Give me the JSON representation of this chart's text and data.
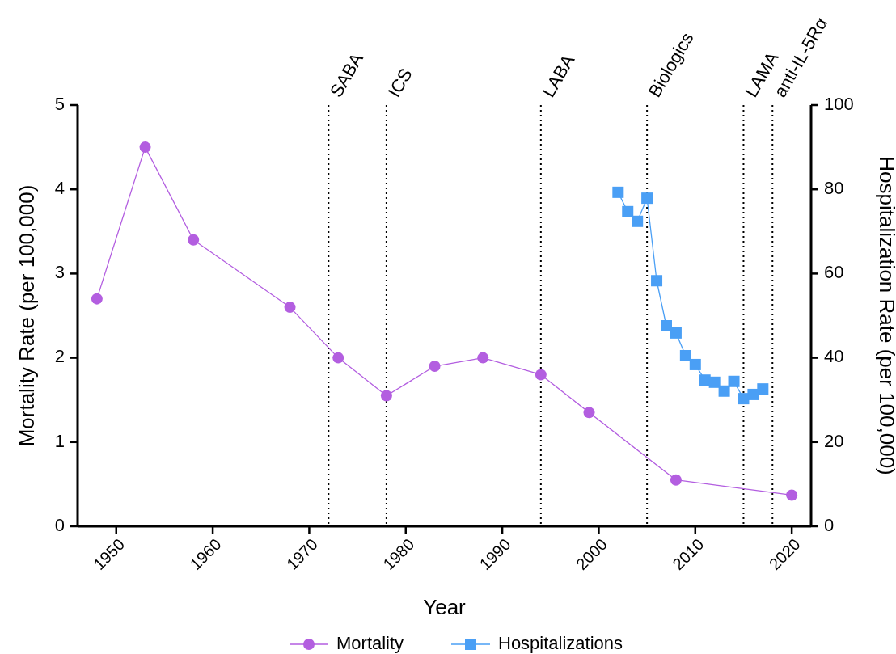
{
  "chart_data": {
    "type": "line",
    "xlabel": "Year",
    "ylabel": "Mortality Rate (per 100,000)",
    "y2label": "Hospitalization Rate (per 100,000)",
    "xlim": [
      1946,
      2022
    ],
    "xticks": [
      1950,
      1960,
      1970,
      1980,
      1990,
      2000,
      2010,
      2020
    ],
    "ylim": [
      0,
      5
    ],
    "yticks": [
      0,
      1,
      2,
      3,
      4,
      5
    ],
    "y2lim": [
      0,
      100
    ],
    "y2ticks": [
      0,
      20,
      40,
      60,
      80,
      100
    ],
    "grid": false,
    "legend": "bottom",
    "line_style": "solid",
    "series": [
      {
        "name": "Mortality",
        "color": "#b35ee0",
        "marker": "circle",
        "x": [
          1948,
          1953,
          1958,
          1968,
          1973,
          1978,
          1983,
          1988,
          1994,
          1999,
          2008,
          2020
        ],
        "values": [
          2.7,
          4.5,
          3.4,
          2.6,
          2.0,
          1.55,
          1.9,
          2.0,
          1.8,
          1.35,
          0.55,
          0.37
        ]
      },
      {
        "name": "Hospitalizations",
        "color": "#4a9ff5",
        "marker": "square",
        "axis": "y2",
        "x": [
          2002,
          2003,
          2004,
          2005,
          2006,
          2007,
          2008,
          2009,
          2010,
          2011,
          2012,
          2013,
          2014,
          2015,
          2016,
          2017
        ],
        "values": [
          79.3,
          74.7,
          72.4,
          77.9,
          58.3,
          47.6,
          45.9,
          40.5,
          38.4,
          34.7,
          34.2,
          32.1,
          34.4,
          30.3,
          31.3,
          32.6
        ]
      }
    ],
    "ref_lines": [
      {
        "axis": "x",
        "value": 1972,
        "label": "SABA",
        "line_style": "dotted",
        "color": "#000000"
      },
      {
        "axis": "x",
        "value": 1978,
        "label": "ICS",
        "line_style": "dotted",
        "color": "#000000"
      },
      {
        "axis": "x",
        "value": 1994,
        "label": "LABA",
        "line_style": "dotted",
        "color": "#000000"
      },
      {
        "axis": "x",
        "value": 2005,
        "label": "Biologics",
        "line_style": "dotted",
        "color": "#000000"
      },
      {
        "axis": "x",
        "value": 2015,
        "label": "LAMA",
        "line_style": "dotted",
        "color": "#000000"
      },
      {
        "axis": "x",
        "value": 2018,
        "label": "anti-IL-5Rα",
        "line_style": "dotted",
        "color": "#000000"
      }
    ]
  }
}
